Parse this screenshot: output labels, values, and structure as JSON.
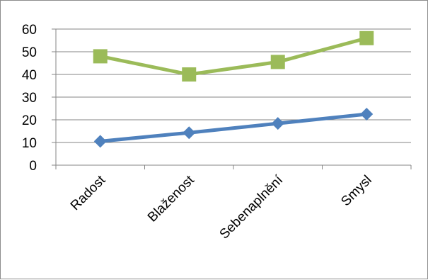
{
  "chart_data": {
    "type": "line",
    "categories": [
      "Radost",
      "Blaženost",
      "Sebenaplnění",
      "Smysl"
    ],
    "series": [
      {
        "values": [
          10.5,
          14.3,
          18.4,
          22.5
        ],
        "color": "#4f81bd",
        "marker": "diamond"
      },
      {
        "values": [
          48,
          40,
          45.5,
          56
        ],
        "color": "#9bbb59",
        "marker": "square"
      }
    ],
    "yticks": [
      0,
      10,
      20,
      30,
      40,
      50,
      60
    ],
    "ylim": [
      0,
      60
    ],
    "grid": true,
    "legend": "none",
    "title": "",
    "xlabel": "",
    "ylabel": ""
  }
}
